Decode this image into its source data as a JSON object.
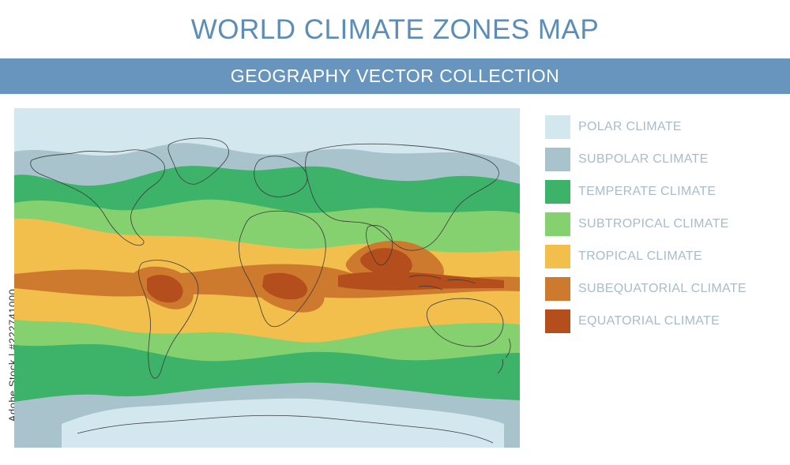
{
  "header": {
    "title": "WORLD CLIMATE ZONES MAP",
    "subtitle": "GEOGRAPHY VECTOR COLLECTION"
  },
  "legend": {
    "items": [
      {
        "label": "POLAR CLIMATE",
        "color": "#d3e7ee"
      },
      {
        "label": "SUBPOLAR CLIMATE",
        "color": "#a8c3cc"
      },
      {
        "label": "TEMPERATE CLIMATE",
        "color": "#3db36a"
      },
      {
        "label": "SUBTROPICAL CLIMATE",
        "color": "#86d16f"
      },
      {
        "label": "TROPICAL CLIMATE",
        "color": "#f3bf4c"
      },
      {
        "label": "SUBEQUATORIAL CLIMATE",
        "color": "#ce7a2e"
      },
      {
        "label": "EQUATORIAL CLIMATE",
        "color": "#b44e1c"
      }
    ]
  },
  "side_text": "Adobe Stock | #222741000"
}
